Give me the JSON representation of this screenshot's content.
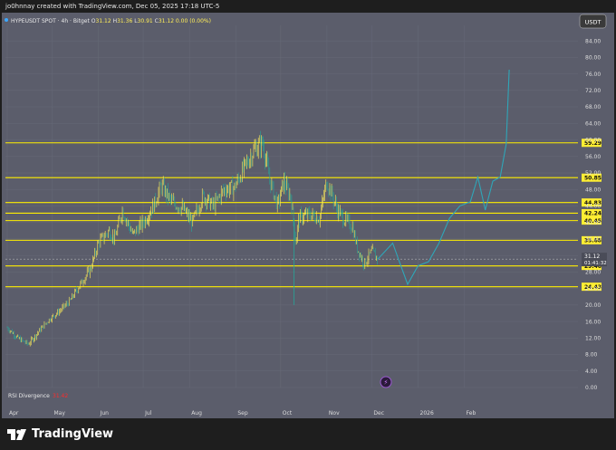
{
  "header": {
    "credit": "jo0hnnay created with TradingView.com, Dec 05, 2025 17:18 UTC-5"
  },
  "footer": {
    "brand": "TradingView"
  },
  "chart_data": {
    "type": "candlestick",
    "symbol": "HYPEUSDT SPOT",
    "interval": "4h",
    "exchange": "Bitget",
    "currency_badge": "USDT",
    "ohlc": {
      "open": "31.12",
      "high": "31.36",
      "low": "30.91",
      "close": "31.12",
      "change": "0.00 (0.00%)"
    },
    "last_price": "31.12",
    "countdown": "01:41:32",
    "y_ticks": [
      "0.00",
      "4.00",
      "8.00",
      "12.00",
      "16.00",
      "20.00",
      "24.00",
      "28.00",
      "32.00",
      "36.00",
      "40.00",
      "44.00",
      "48.00",
      "52.00",
      "56.00",
      "60.00",
      "64.00",
      "68.00",
      "72.00",
      "76.00",
      "80.00",
      "84.00"
    ],
    "ylim": [
      0,
      86
    ],
    "x_ticks": [
      "Apr",
      "May",
      "Jun",
      "Jul",
      "Aug",
      "Sep",
      "Oct",
      "Nov",
      "Dec",
      "2026",
      "Feb"
    ],
    "levels": [
      {
        "value": 59.29,
        "label": "59.29"
      },
      {
        "value": 50.85,
        "label": "50.85"
      },
      {
        "value": 44.83,
        "label": "44.83"
      },
      {
        "value": 42.24,
        "label": "42.24"
      },
      {
        "value": 40.45,
        "label": "40.45"
      },
      {
        "value": 35.68,
        "label": "35.68"
      },
      {
        "value": 29.46,
        "label": "29.46"
      },
      {
        "value": 24.43,
        "label": "24.43"
      }
    ],
    "price_path": [
      [
        "Apr 01",
        14.5
      ],
      [
        "Apr 08",
        12.0
      ],
      [
        "Apr 15",
        10.5
      ],
      [
        "Apr 22",
        13.5
      ],
      [
        "Apr 29",
        16.5
      ],
      [
        "May 06",
        18.5
      ],
      [
        "May 13",
        21.0
      ],
      [
        "May 20",
        25.0
      ],
      [
        "May 27",
        29.0
      ],
      [
        "Jun 01",
        35.0
      ],
      [
        "Jun 08",
        38.0
      ],
      [
        "Jun 12",
        36.0
      ],
      [
        "Jun 17",
        43.0
      ],
      [
        "Jun 24",
        37.0
      ],
      [
        "Jul 01",
        40.0
      ],
      [
        "Jul 08",
        44.0
      ],
      [
        "Jul 13",
        49.0
      ],
      [
        "Jul 20",
        45.0
      ],
      [
        "Jul 27",
        43.5
      ],
      [
        "Aug 03",
        40.0
      ],
      [
        "Aug 10",
        46.5
      ],
      [
        "Aug 17",
        44.0
      ],
      [
        "Aug 24",
        48.0
      ],
      [
        "Aug 31",
        48.5
      ],
      [
        "Sep 07",
        53.5
      ],
      [
        "Sep 14",
        58.0
      ],
      [
        "Sep 19",
        59.3
      ],
      [
        "Sep 24",
        50.0
      ],
      [
        "Sep 29",
        44.0
      ],
      [
        "Oct 03",
        50.0
      ],
      [
        "Oct 08",
        46.0
      ],
      [
        "Oct 11",
        35.0
      ],
      [
        "Oct 13",
        41.0
      ],
      [
        "Oct 20",
        42.0
      ],
      [
        "Oct 27",
        41.0
      ],
      [
        "Nov 01",
        50.0
      ],
      [
        "Nov 05",
        46.0
      ],
      [
        "Nov 08",
        43.0
      ],
      [
        "Nov 12",
        41.0
      ],
      [
        "Nov 18",
        39.0
      ],
      [
        "Nov 21",
        34.0
      ],
      [
        "Nov 26",
        30.0
      ],
      [
        "Dec 01",
        33.0
      ],
      [
        "Dec 05",
        31.12
      ]
    ],
    "projection_path": [
      [
        "Dec 05",
        31.12
      ],
      [
        "Dec 15",
        35.0
      ],
      [
        "Dec 20",
        30.0
      ],
      [
        "Dec 25",
        25.0
      ],
      [
        "Jan 01",
        29.5
      ],
      [
        "Jan 08",
        30.5
      ],
      [
        "Jan 15",
        35.0
      ],
      [
        "Jan 22",
        41.0
      ],
      [
        "Jan 29",
        44.0
      ],
      [
        "Feb 05",
        45.0
      ],
      [
        "Feb 10",
        51.0
      ],
      [
        "Feb 15",
        43.0
      ],
      [
        "Feb 20",
        50.0
      ],
      [
        "Feb 25",
        51.0
      ],
      [
        "Mar 01",
        59.0
      ],
      [
        "Mar 03",
        77.0
      ]
    ],
    "indicator": {
      "name": "RSI Divergence",
      "value": "31.42"
    },
    "colors": {
      "background": "#5b5d6b",
      "level_line": "#ffee00",
      "bull": "#ffee58",
      "bear": "#26a69a",
      "projection": "#2fa6b8",
      "indicator_value": "#ff2a2a"
    }
  }
}
